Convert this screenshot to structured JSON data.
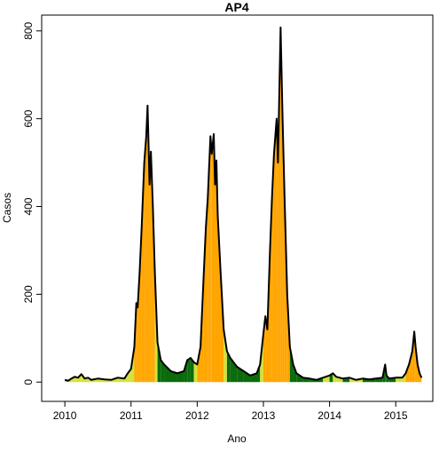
{
  "chart_data": {
    "type": "area",
    "title": "AP4",
    "xlabel": "Ano",
    "ylabel": "Casos",
    "x": [
      2010.0,
      2010.05,
      2010.1,
      2010.15,
      2010.2,
      2010.25,
      2010.3,
      2010.35,
      2010.4,
      2010.5,
      2010.6,
      2010.7,
      2010.8,
      2010.9,
      2010.95,
      2011.0,
      2011.05,
      2011.08,
      2011.1,
      2011.13,
      2011.16,
      2011.2,
      2011.23,
      2011.25,
      2011.28,
      2011.3,
      2011.33,
      2011.36,
      2011.4,
      2011.45,
      2011.5,
      2011.6,
      2011.7,
      2011.8,
      2011.85,
      2011.9,
      2011.95,
      2012.0,
      2012.05,
      2012.1,
      2012.13,
      2012.16,
      2012.2,
      2012.22,
      2012.25,
      2012.27,
      2012.29,
      2012.31,
      2012.35,
      2012.4,
      2012.45,
      2012.5,
      2012.6,
      2012.7,
      2012.8,
      2012.9,
      2012.95,
      2013.0,
      2013.03,
      2013.06,
      2013.1,
      2013.13,
      2013.16,
      2013.2,
      2013.22,
      2013.26,
      2013.29,
      2013.32,
      2013.36,
      2013.4,
      2013.45,
      2013.5,
      2013.6,
      2013.7,
      2013.8,
      2013.9,
      2014.0,
      2014.05,
      2014.1,
      2014.2,
      2014.3,
      2014.4,
      2014.5,
      2014.6,
      2014.7,
      2014.8,
      2014.84,
      2014.86,
      2014.9,
      2015.0,
      2015.1,
      2015.15,
      2015.2,
      2015.25,
      2015.28,
      2015.3,
      2015.33,
      2015.36,
      2015.39
    ],
    "values": [
      5,
      3,
      8,
      12,
      10,
      18,
      8,
      10,
      5,
      8,
      6,
      5,
      10,
      8,
      20,
      30,
      80,
      180,
      170,
      250,
      350,
      500,
      560,
      630,
      450,
      525,
      400,
      250,
      90,
      50,
      40,
      25,
      20,
      25,
      50,
      55,
      45,
      40,
      80,
      250,
      350,
      420,
      560,
      520,
      565,
      450,
      505,
      380,
      260,
      120,
      70,
      55,
      35,
      25,
      15,
      20,
      40,
      110,
      150,
      120,
      300,
      420,
      520,
      600,
      500,
      808,
      600,
      420,
      200,
      80,
      40,
      20,
      10,
      8,
      5,
      10,
      15,
      20,
      12,
      8,
      10,
      5,
      8,
      6,
      8,
      10,
      40,
      15,
      8,
      10,
      10,
      20,
      40,
      70,
      115,
      80,
      40,
      20,
      10
    ],
    "fill_colors": [
      "#d6e03a",
      "#d6e03a",
      "#d6e03a",
      "#d6e03a",
      "#d6e03a",
      "#d6e03a",
      "#d6e03a",
      "#d6e03a",
      "#d6e03a",
      "#d6e03a",
      "#d6e03a",
      "#d6e03a",
      "#d6e03a",
      "#d6e03a",
      "#d6e03a",
      "#d6e03a",
      "#ffa500",
      "#ffa500",
      "#ffa500",
      "#ffa500",
      "#ffa500",
      "#ffa500",
      "#ffa500",
      "#ffa500",
      "#ffa500",
      "#ffa500",
      "#ffa500",
      "#d6e03a",
      "#0b6b0b",
      "#0b6b0b",
      "#0b6b0b",
      "#0b6b0b",
      "#0b6b0b",
      "#0b6b0b",
      "#0b6b0b",
      "#0b6b0b",
      "#d6e03a",
      "#ffa500",
      "#ffa500",
      "#ffa500",
      "#ffa500",
      "#ffa500",
      "#ffa500",
      "#ffa500",
      "#ffa500",
      "#ffa500",
      "#ffa500",
      "#ffa500",
      "#ffa500",
      "#d6e03a",
      "#0b6b0b",
      "#0b6b0b",
      "#0b6b0b",
      "#0b6b0b",
      "#0b6b0b",
      "#0b6b0b",
      "#d6e03a",
      "#ffa500",
      "#ffa500",
      "#ffa500",
      "#ffa500",
      "#ffa500",
      "#ffa500",
      "#ffa500",
      "#ffa500",
      "#ffa500",
      "#ffa500",
      "#ffa500",
      "#ffa500",
      "#0b6b0b",
      "#0b6b0b",
      "#0b6b0b",
      "#0b6b0b",
      "#0b6b0b",
      "#0b6b0b",
      "#d6e03a",
      "#0b6b0b",
      "#d6e03a",
      "#d6e03a",
      "#0b6b0b",
      "#d6e03a",
      "#d6e03a",
      "#0b6b0b",
      "#0b6b0b",
      "#0b6b0b",
      "#0b6b0b",
      "#0b6b0b",
      "#0b6b0b",
      "#0b6b0b",
      "#d6e03a",
      "#d6e03a",
      "#ffa500",
      "#ffa500",
      "#ffa500",
      "#ffa500",
      "#ffa500",
      "#ffa500",
      "#ffa500",
      "#ffa500"
    ],
    "line_color": "#000000",
    "xlim": [
      2009.65,
      2015.56
    ],
    "ylim": [
      -44,
      836
    ],
    "xticks": [
      2010,
      2011,
      2012,
      2013,
      2014,
      2015
    ],
    "yticks": [
      0,
      200,
      400,
      600,
      800
    ]
  }
}
